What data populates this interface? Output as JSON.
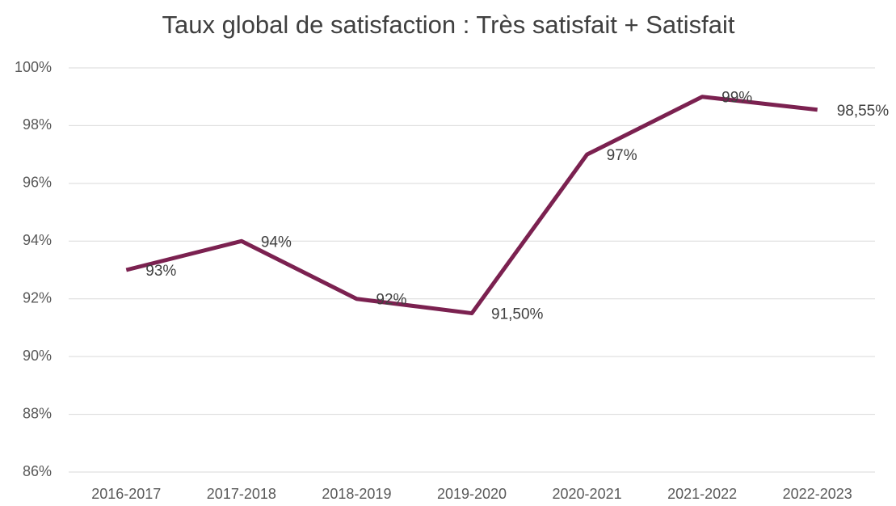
{
  "chart_data": {
    "type": "line",
    "title": "Taux global de satisfaction : Très satisfait + Satisfait",
    "categories": [
      "2016-2017",
      "2017-2018",
      "2018-2019",
      "2019-2020",
      "2020-2021",
      "2021-2022",
      "2022-2023"
    ],
    "series": [
      {
        "name": "Taux global de satisfaction",
        "color": "#7b2150",
        "values": [
          93,
          94,
          92,
          91.5,
          97,
          99,
          98.55
        ],
        "value_labels": [
          "93%",
          "94%",
          "92%",
          "91,50%",
          "97%",
          "99%",
          "98,55%"
        ]
      }
    ],
    "ylim": [
      86,
      100
    ],
    "yticks": [
      {
        "value": 86,
        "label": "86%"
      },
      {
        "value": 88,
        "label": "88%"
      },
      {
        "value": 90,
        "label": "90%"
      },
      {
        "value": 92,
        "label": "92%"
      },
      {
        "value": 94,
        "label": "94%"
      },
      {
        "value": 96,
        "label": "96%"
      },
      {
        "value": 98,
        "label": "98%"
      },
      {
        "value": 100,
        "label": "100%"
      }
    ],
    "grid": true
  }
}
